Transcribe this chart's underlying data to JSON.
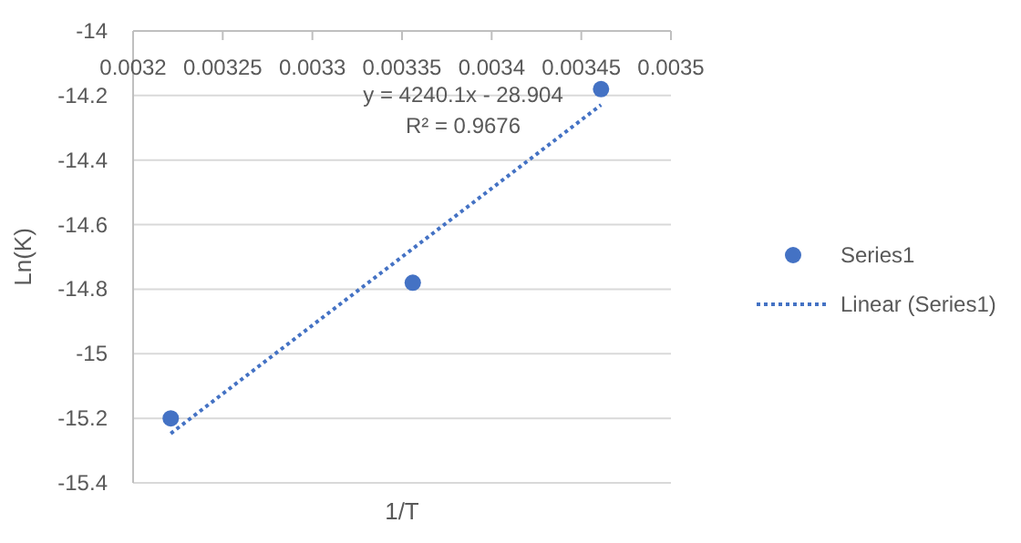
{
  "chart_data": {
    "type": "scatter",
    "xlabel": "1/T",
    "ylabel": "Ln(K)",
    "xlim": [
      0.0032,
      0.0035
    ],
    "xticks": [
      0.0032,
      0.00325,
      0.0033,
      0.00335,
      0.0034,
      0.00345,
      0.0035
    ],
    "ylim": [
      -15.4,
      -14
    ],
    "yticks": [
      -15.4,
      -15.2,
      -15,
      -14.8,
      -14.6,
      -14.4,
      -14.2,
      -14
    ],
    "grid": "y",
    "legend": "right",
    "marker": "circle",
    "series": [
      {
        "name": "Series1",
        "color": "#4472c4",
        "x": [
          0.003221,
          0.003356,
          0.003461
        ],
        "values": [
          -15.2,
          -14.78,
          -14.18
        ]
      },
      {
        "name": "Linear (Series1)",
        "type": "line",
        "line_style": "dotted",
        "marker": "none",
        "color": "#4472c4",
        "x": [
          0.003221,
          0.003461
        ],
        "values": [
          -15.247,
          -14.229
        ]
      }
    ],
    "annotations": [
      "y = 4240.1x - 28.904",
      "R² = 0.9676"
    ]
  }
}
